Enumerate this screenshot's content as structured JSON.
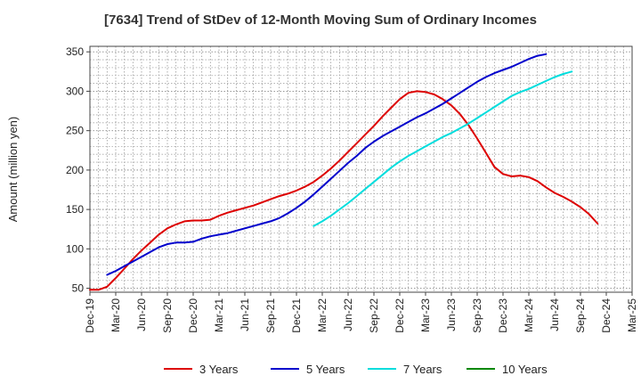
{
  "chart_data": {
    "type": "line",
    "title": "[7634]  Trend of StDev of 12-Month Moving Sum of Ordinary Incomes",
    "xlabel": "",
    "ylabel": "Amount (million yen)",
    "ylim": [
      45,
      357
    ],
    "yticks": [
      50,
      100,
      150,
      200,
      250,
      300,
      350
    ],
    "x_range": [
      0,
      63
    ],
    "x_ticks": [
      {
        "label": "Dec-19",
        "x": 0
      },
      {
        "label": "Mar-20",
        "x": 3
      },
      {
        "label": "Jun-20",
        "x": 6
      },
      {
        "label": "Sep-20",
        "x": 9
      },
      {
        "label": "Dec-20",
        "x": 12
      },
      {
        "label": "Mar-21",
        "x": 15
      },
      {
        "label": "Jun-21",
        "x": 18
      },
      {
        "label": "Sep-21",
        "x": 21
      },
      {
        "label": "Dec-21",
        "x": 24
      },
      {
        "label": "Mar-22",
        "x": 27
      },
      {
        "label": "Jun-22",
        "x": 30
      },
      {
        "label": "Sep-22",
        "x": 33
      },
      {
        "label": "Dec-22",
        "x": 36
      },
      {
        "label": "Mar-23",
        "x": 39
      },
      {
        "label": "Jun-23",
        "x": 42
      },
      {
        "label": "Sep-23",
        "x": 45
      },
      {
        "label": "Dec-23",
        "x": 48
      },
      {
        "label": "Mar-24",
        "x": 51
      },
      {
        "label": "Jun-24",
        "x": 54
      },
      {
        "label": "Sep-24",
        "x": 57
      },
      {
        "label": "Dec-24",
        "x": 60
      },
      {
        "label": "Mar-25",
        "x": 63
      }
    ],
    "grid": true,
    "legend_position": "bottom",
    "series": [
      {
        "name": "3 Years",
        "color": "#dd0000",
        "start_x": 0,
        "values": [
          48,
          48,
          52,
          63,
          75,
          87,
          98,
          108,
          118,
          126,
          131,
          135,
          136,
          136,
          137,
          142,
          146,
          149,
          152,
          155,
          159,
          163,
          167,
          170,
          174,
          179,
          185,
          193,
          202,
          212,
          223,
          234,
          245,
          256,
          268,
          279,
          290,
          298,
          300,
          299,
          296,
          290,
          282,
          271,
          257,
          240,
          222,
          204,
          195,
          192,
          193,
          191,
          186,
          178,
          171,
          166,
          160,
          153,
          144,
          132
        ]
      },
      {
        "name": "5 Years",
        "color": "#0000cc",
        "start_x": 2,
        "values": [
          67,
          72,
          78,
          84,
          90,
          96,
          102,
          106,
          108,
          108,
          109,
          113,
          116,
          118,
          120,
          123,
          126,
          129,
          132,
          135,
          139,
          145,
          152,
          160,
          169,
          179,
          189,
          199,
          209,
          218,
          228,
          236,
          243,
          249,
          255,
          261,
          267,
          272,
          278,
          284,
          291,
          298,
          305,
          312,
          318,
          323,
          327,
          331,
          336,
          341,
          345,
          347
        ]
      },
      {
        "name": "7 Years",
        "color": "#00dddd",
        "start_x": 26,
        "values": [
          129,
          135,
          142,
          150,
          158,
          167,
          176,
          185,
          194,
          203,
          211,
          218,
          224,
          230,
          236,
          242,
          247,
          253,
          259,
          266,
          273,
          280,
          287,
          294,
          299,
          303,
          308,
          313,
          318,
          322,
          325
        ]
      },
      {
        "name": "10 Years",
        "color": "#008800",
        "start_x": 0,
        "values": []
      }
    ]
  }
}
